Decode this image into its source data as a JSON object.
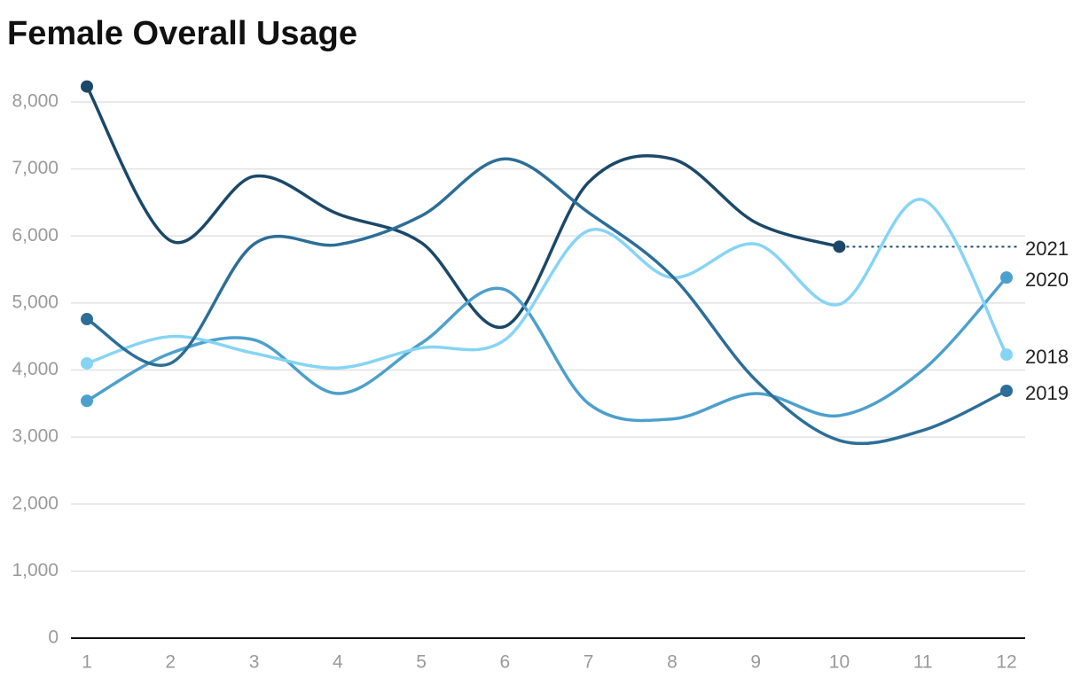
{
  "chart_data": {
    "type": "line",
    "title": "Female Overall Usage",
    "x": [
      1,
      2,
      3,
      4,
      5,
      6,
      7,
      8,
      9,
      10,
      11,
      12
    ],
    "xlim": [
      1,
      12
    ],
    "ylim": [
      0,
      8000
    ],
    "yticks": [
      0,
      {
        "value": 1000,
        "label": "1,000"
      },
      {
        "value": 2000,
        "label": "2,000"
      },
      {
        "value": 3000,
        "label": "3,000"
      },
      {
        "value": 4000,
        "label": "4,000"
      },
      {
        "value": 5000,
        "label": "5,000"
      },
      {
        "value": 6000,
        "label": "6,000"
      },
      {
        "value": 7000,
        "label": "7,000"
      },
      {
        "value": 8000,
        "label": "8,000"
      }
    ],
    "grid": true,
    "series": [
      {
        "name": "2021",
        "color": "#1b4869",
        "values": [
          8230,
          5930,
          6890,
          6330,
          5900,
          4650,
          6800,
          7150,
          6200,
          5840,
          null,
          null
        ]
      },
      {
        "name": "2020",
        "color": "#4ca0cc",
        "values": [
          3540,
          4250,
          4450,
          3650,
          4400,
          5200,
          3500,
          3270,
          3650,
          3320,
          4000,
          5380
        ]
      },
      {
        "name": "2018",
        "color": "#86d4f5",
        "values": [
          4100,
          4500,
          4250,
          4030,
          4330,
          4450,
          6080,
          5380,
          5880,
          4980,
          6540,
          4230
        ]
      },
      {
        "name": "2019",
        "color": "#2c6e97",
        "values": [
          4760,
          4100,
          5880,
          5870,
          6300,
          7150,
          6350,
          5400,
          3850,
          2950,
          3100,
          3690
        ]
      }
    ]
  }
}
